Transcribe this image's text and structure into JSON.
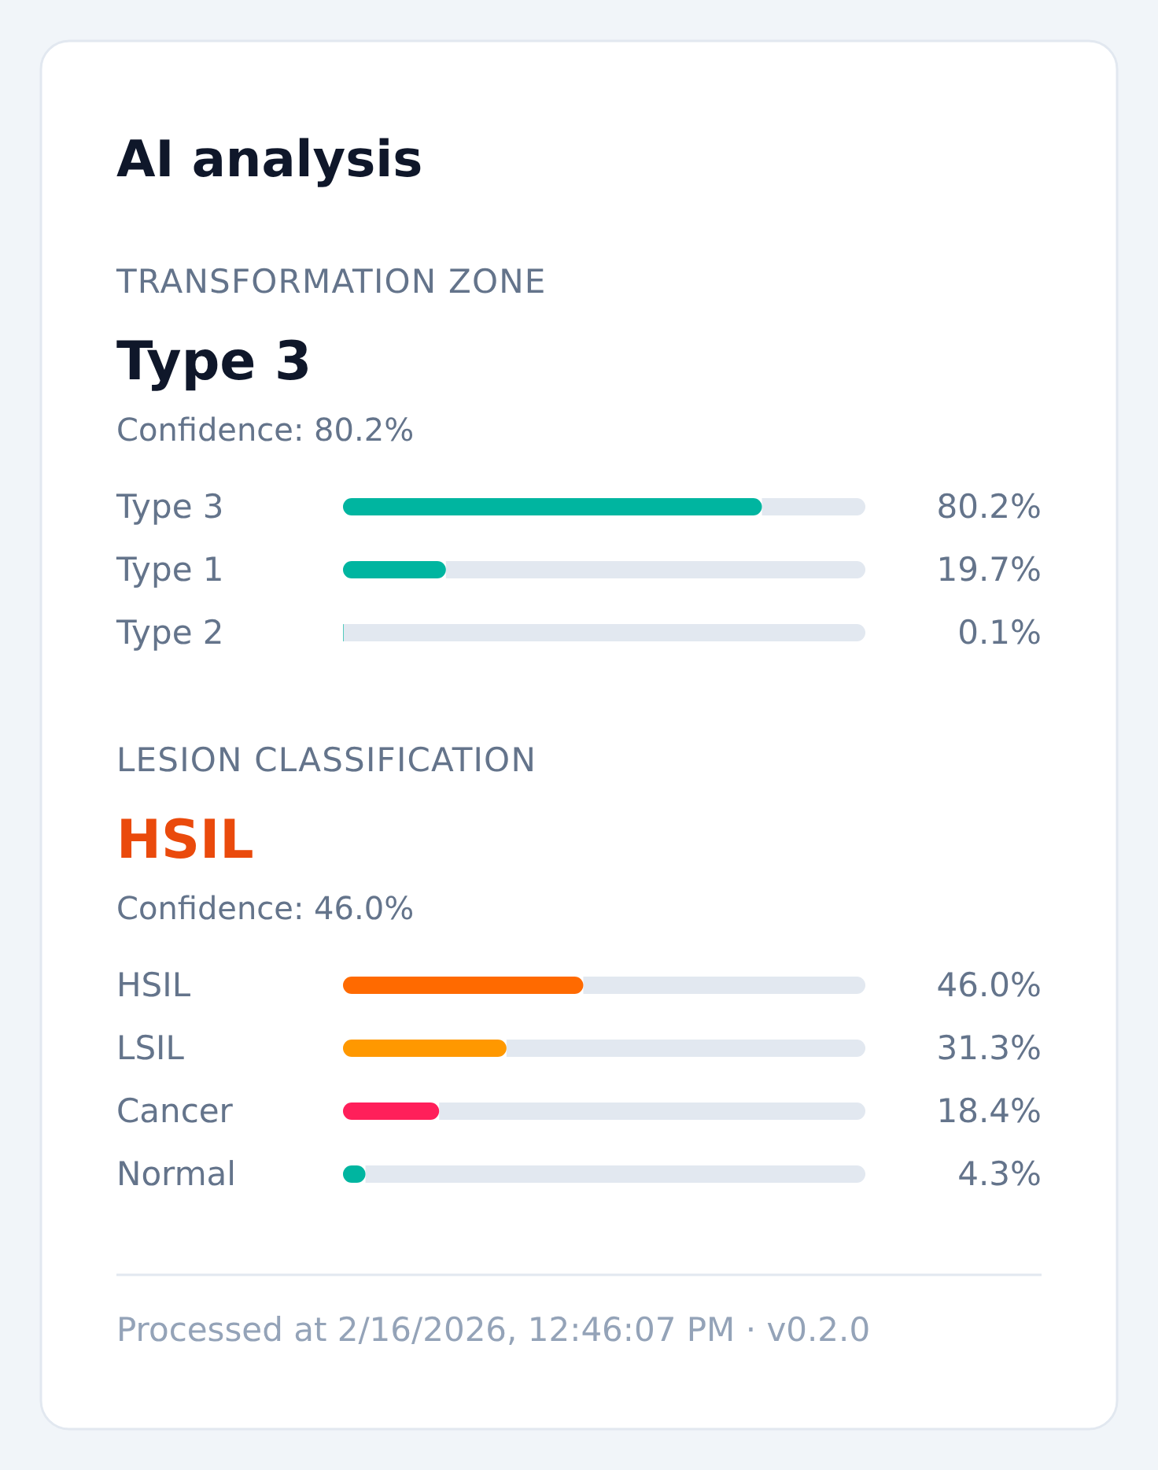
{
  "chart_data": [
    {
      "type": "other",
      "title": "AI analysis"
    },
    {
      "type": "bar",
      "orientation": "horizontal",
      "title": "TRANSFORMATION ZONE",
      "subtitle": "Type 3",
      "annotations": [
        "Confidence: 80.2%"
      ],
      "categories": [
        "Type 3",
        "Type 1",
        "Type 2"
      ],
      "values": [
        80.2,
        19.7,
        0.1
      ],
      "colors": [
        "#00b5a0",
        "#00b5a0",
        "#00b5a0"
      ],
      "value_labels": [
        "80.2%",
        "19.7%",
        "0.1%"
      ],
      "xlim": [
        0,
        100
      ],
      "tick_labels": "y"
    },
    {
      "type": "bar",
      "orientation": "horizontal",
      "title": "LESION CLASSIFICATION",
      "subtitle": "HSIL",
      "annotations": [
        "Confidence: 46.0%",
        "Processed at 2/16/2026, 12:46:07 PM · v0.2.0"
      ],
      "categories": [
        "HSIL",
        "LSIL",
        "Cancer",
        "Normal"
      ],
      "values": [
        46.0,
        31.3,
        18.4,
        4.3
      ],
      "colors": [
        "#ff6a00",
        "#ff9800",
        "#ff1f5a",
        "#00b5a0"
      ],
      "value_labels": [
        "46.0%",
        "31.3%",
        "18.4%",
        "4.3%"
      ],
      "xlim": [
        0,
        100
      ],
      "tick_labels": "y"
    }
  ]
}
